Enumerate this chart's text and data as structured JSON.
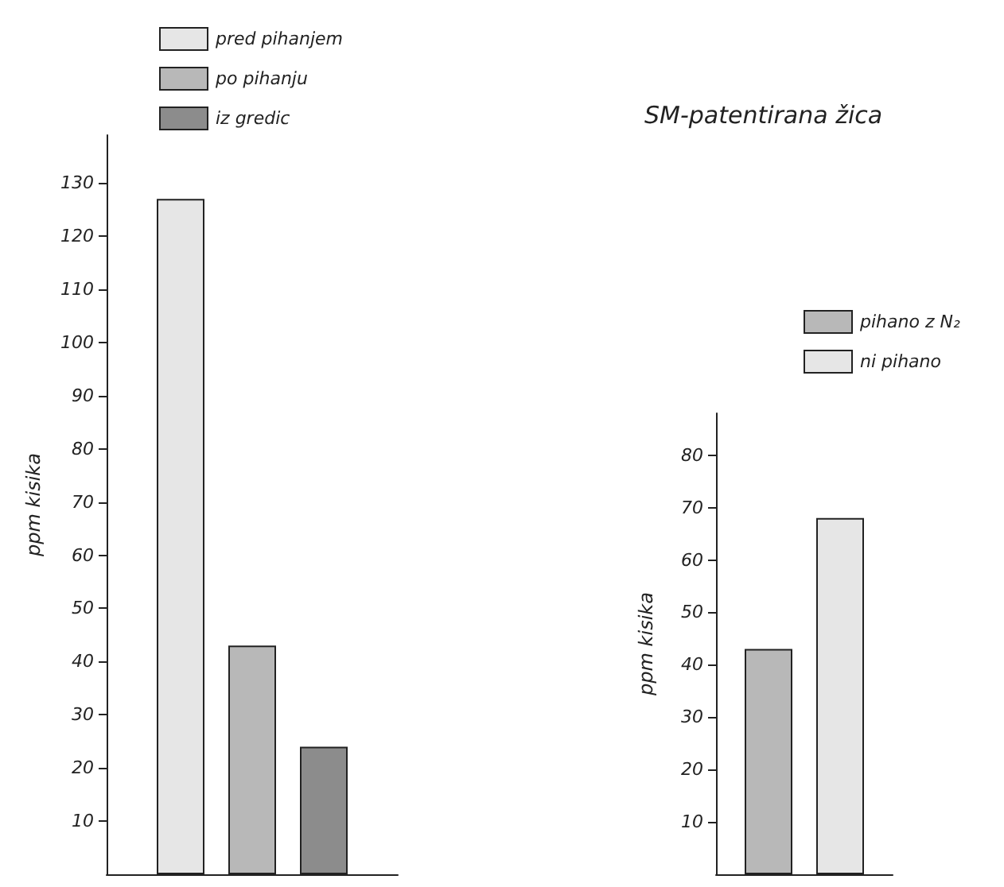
{
  "chart_data": [
    {
      "type": "bar",
      "ylabel": "ppm kisika",
      "categories": [
        null
      ],
      "ylim": [
        0,
        139
      ],
      "yticks": [
        10,
        20,
        30,
        40,
        50,
        60,
        70,
        80,
        90,
        100,
        110,
        120,
        130
      ],
      "legend": "top",
      "grid": false,
      "series": [
        {
          "name": "pred pihanjem",
          "color": "#e6e6e6",
          "values": [
            127
          ]
        },
        {
          "name": "po pihanju",
          "color": "#b8b8b8",
          "values": [
            43
          ]
        },
        {
          "name": "iz gredic",
          "color": "#8c8c8c",
          "values": [
            24
          ]
        }
      ]
    },
    {
      "type": "bar",
      "title": "SM-patentirana žica",
      "ylabel": "ppm kisika",
      "categories": [
        null
      ],
      "ylim": [
        0,
        88
      ],
      "yticks": [
        10,
        20,
        30,
        40,
        50,
        60,
        70,
        80
      ],
      "legend": "top",
      "grid": false,
      "series": [
        {
          "name": "pihano z N₂",
          "color": "#b8b8b8",
          "values": [
            43
          ]
        },
        {
          "name": "ni pihano",
          "color": "#e6e6e6",
          "values": [
            68
          ]
        }
      ]
    }
  ]
}
